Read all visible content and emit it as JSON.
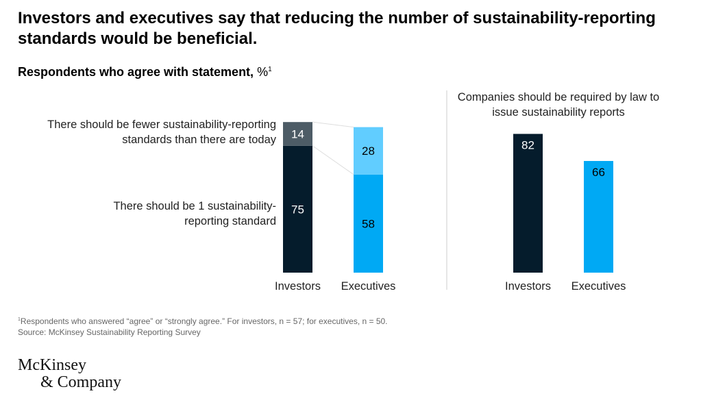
{
  "title": "Investors and executives say that reducing the number of sustainability-reporting standards would be beneficial.",
  "subtitle": "Respondents who agree with statement,",
  "subtitle_unit": "%",
  "subtitle_footnote_mark": "1",
  "chart_data": [
    {
      "type": "bar",
      "stacked": true,
      "categories": [
        "Investors",
        "Executives"
      ],
      "series": [
        {
          "name": "There should be 1 sustainability-reporting standard",
          "values": [
            75,
            58
          ],
          "colors": [
            "#051c2c",
            "#00a9f4"
          ],
          "label_colors": [
            "#ffffff",
            "#000000"
          ]
        },
        {
          "name": "There should be fewer sustainability-reporting standards than there are today",
          "values": [
            14,
            28
          ],
          "colors": [
            "#4d5c66",
            "#61cdff"
          ],
          "label_colors": [
            "#ffffff",
            "#000000"
          ]
        }
      ],
      "ylim": [
        0,
        100
      ],
      "grid": false,
      "legend": "left"
    },
    {
      "type": "bar",
      "title": "Companies should be required by law to issue sustainability reports",
      "categories": [
        "Investors",
        "Executives"
      ],
      "values": [
        82,
        66
      ],
      "colors": [
        "#051c2c",
        "#00a9f4"
      ],
      "label_colors": [
        "#ffffff",
        "#000000"
      ],
      "ylim": [
        0,
        100
      ],
      "grid": false
    }
  ],
  "footnote": "Respondents who answered “agree” or “strongly agree.” For investors, n = 57; for executives, n = 50.",
  "footnote_mark": "1",
  "source": "Source: McKinsey Sustainability Reporting Survey",
  "logo": {
    "line1": "McKinsey",
    "line2": "& Company"
  }
}
